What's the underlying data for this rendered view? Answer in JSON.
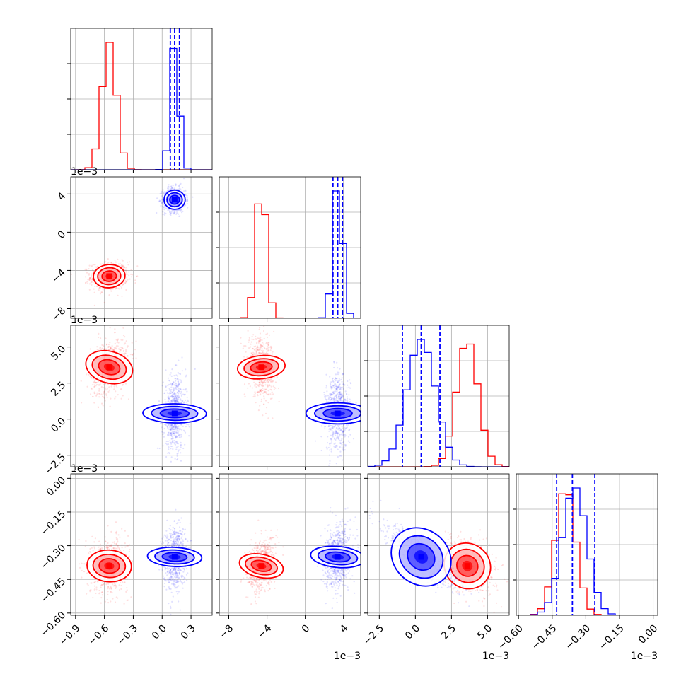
{
  "chart_data": {
    "type": "corner",
    "title": "",
    "parameters": [
      {
        "range": [
          -0.95,
          0.52
        ],
        "ticks": [
          -0.9,
          -0.6,
          -0.3,
          0.0,
          0.3
        ],
        "tick_labels": [
          "−0.9",
          "−0.6",
          "−0.3",
          "0.0",
          "0.3"
        ],
        "offset_label": ""
      },
      {
        "range": [
          -9.0,
          5.8
        ],
        "ticks": [
          -8,
          -4,
          0,
          4
        ],
        "tick_labels": [
          "−8",
          "−4",
          "0",
          "4"
        ],
        "offset_label": "1e−3"
      },
      {
        "range": [
          -3.3,
          6.5
        ],
        "ticks": [
          -2.5,
          0.0,
          2.5,
          5.0
        ],
        "tick_labels": [
          "−2.5",
          "0.0",
          "2.5",
          "5.0"
        ],
        "offset_label": "1e−3"
      },
      {
        "range": [
          -0.61,
          0.02
        ],
        "ticks": [
          -0.6,
          -0.45,
          -0.3,
          -0.15,
          0.0
        ],
        "tick_labels": [
          "−0.60",
          "−0.45",
          "−0.30",
          "−0.15",
          "0.00"
        ],
        "offset_label": "1e−3"
      }
    ],
    "series": [
      {
        "name": "",
        "color": "#ff0000",
        "mean": [
          -0.55,
          -4.6,
          3.6,
          -0.39
        ],
        "sd": [
          0.075,
          0.55,
          0.75,
          0.045
        ],
        "corr": {
          "0-1": 0.05,
          "0-2": 0.25,
          "0-3": 0.05,
          "1-2": -0.15,
          "1-3": 0.3,
          "2-3": -0.3
        }
      },
      {
        "name": "",
        "color": "#0000ff",
        "mean": [
          0.13,
          3.4,
          0.4,
          -0.35
        ],
        "sd": [
          0.045,
          0.5,
          1.0,
          0.055
        ],
        "corr": {
          "0-1": 0.0,
          "0-2": 0.05,
          "0-3": 0.1,
          "1-2": 0.0,
          "1-3": 0.2,
          "2-3": -0.85
        }
      }
    ],
    "quantile_lines_color": "#0000ff",
    "quantiles": [
      [
        0.085,
        0.13,
        0.18
      ],
      [
        2.9,
        3.4,
        3.9
      ],
      [
        -0.9,
        0.4,
        1.7
      ],
      [
        -0.43,
        -0.36,
        -0.26
      ]
    ],
    "grid": true
  }
}
